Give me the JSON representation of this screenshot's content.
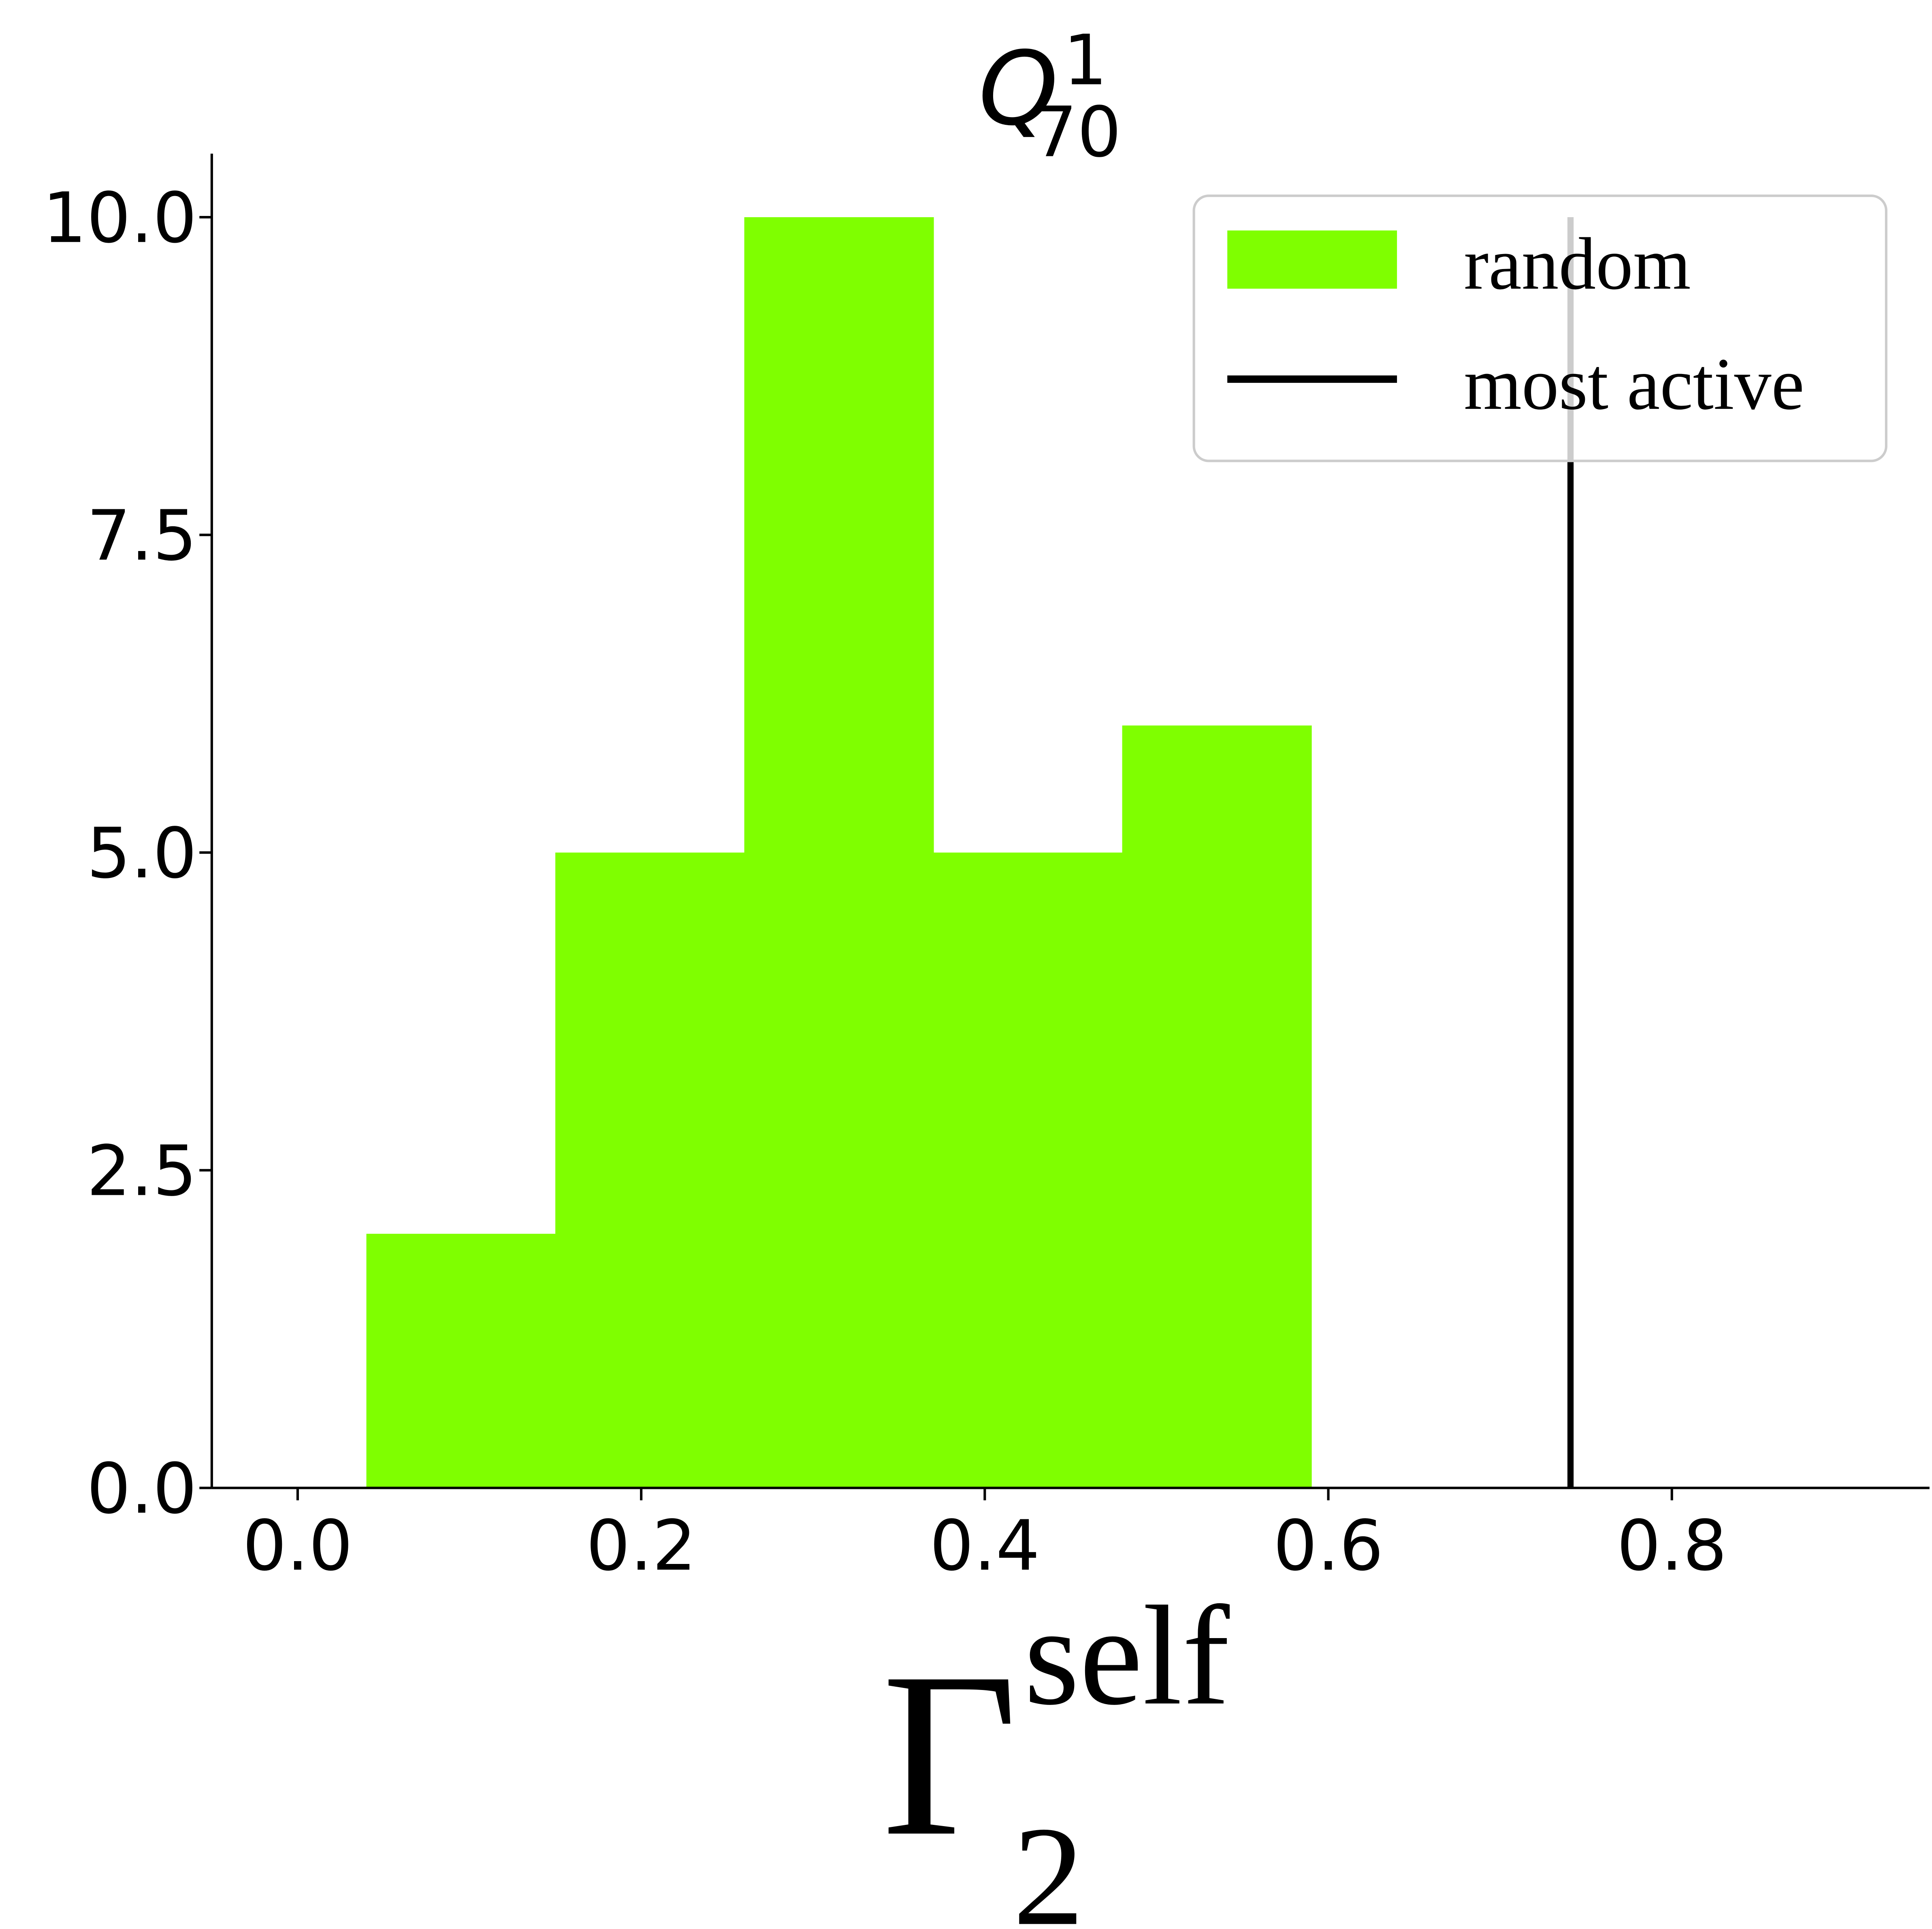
{
  "chart_data": {
    "type": "bar",
    "subtype": "histogram",
    "title": {
      "base": "Q",
      "sup": "1",
      "sub": "70"
    },
    "xlabel": {
      "base": "Γ",
      "sup": "self",
      "sub": "2"
    },
    "ylabel": "",
    "xlim": [
      -0.05,
      0.95
    ],
    "ylim": [
      0,
      10.5
    ],
    "xticks": [
      "0.0",
      "0.2",
      "0.4",
      "0.6",
      "0.8"
    ],
    "xtick_values": [
      0.0,
      0.2,
      0.4,
      0.6,
      0.8
    ],
    "yticks": [
      "0.0",
      "2.5",
      "5.0",
      "7.5",
      "10.0"
    ],
    "ytick_values": [
      0,
      2.5,
      5,
      7.5,
      10
    ],
    "grid": false,
    "legend_placement": "top-right",
    "series": [
      {
        "name": "random",
        "kind": "histogram",
        "color": "#7fff00",
        "bin_edges": [
          0.04,
          0.15,
          0.26,
          0.37,
          0.48,
          0.59
        ],
        "counts": [
          2,
          5,
          10,
          5,
          6
        ]
      },
      {
        "name": "most active",
        "kind": "vline",
        "color": "#000000",
        "x": 0.741,
        "ymax": 10
      }
    ]
  }
}
